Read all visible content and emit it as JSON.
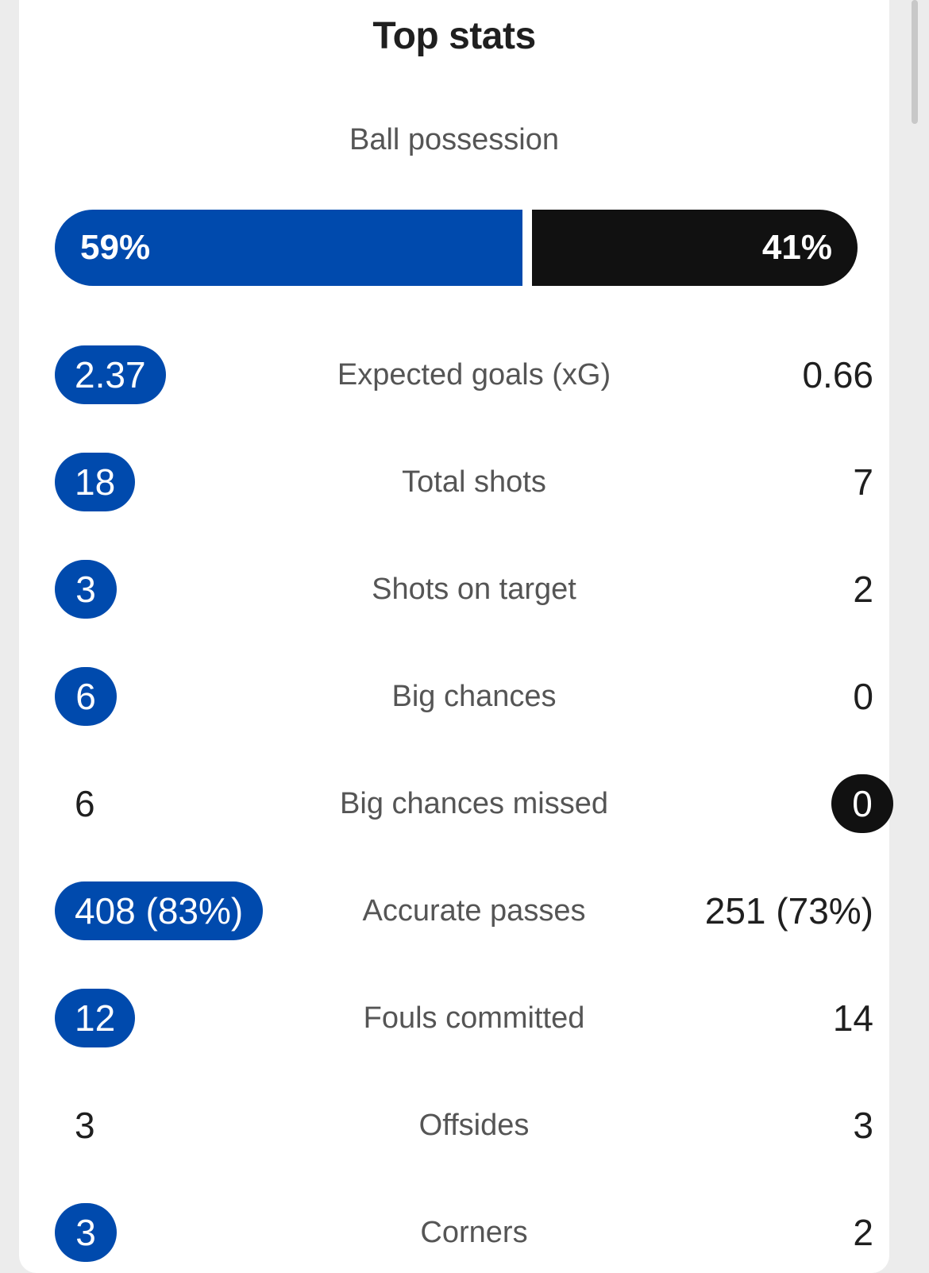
{
  "colors": {
    "home": "#004aad",
    "away": "#111111"
  },
  "header": {
    "title": "Top stats"
  },
  "possession": {
    "label": "Ball possession",
    "home": "59%",
    "away": "41%",
    "home_fraction": 0.59,
    "away_fraction": 0.41
  },
  "stats": [
    {
      "label": "Expected goals (xG)",
      "home": "2.37",
      "away": "0.66",
      "highlight": "home"
    },
    {
      "label": "Total shots",
      "home": "18",
      "away": "7",
      "highlight": "home"
    },
    {
      "label": "Shots on target",
      "home": "3",
      "away": "2",
      "highlight": "home"
    },
    {
      "label": "Big chances",
      "home": "6",
      "away": "0",
      "highlight": "home"
    },
    {
      "label": "Big chances missed",
      "home": "6",
      "away": "0",
      "highlight": "away"
    },
    {
      "label": "Accurate passes",
      "home": "408 (83%)",
      "away": "251 (73%)",
      "highlight": "home"
    },
    {
      "label": "Fouls committed",
      "home": "12",
      "away": "14",
      "highlight": "home"
    },
    {
      "label": "Offsides",
      "home": "3",
      "away": "3",
      "highlight": "none"
    },
    {
      "label": "Corners",
      "home": "3",
      "away": "2",
      "highlight": "home"
    }
  ]
}
